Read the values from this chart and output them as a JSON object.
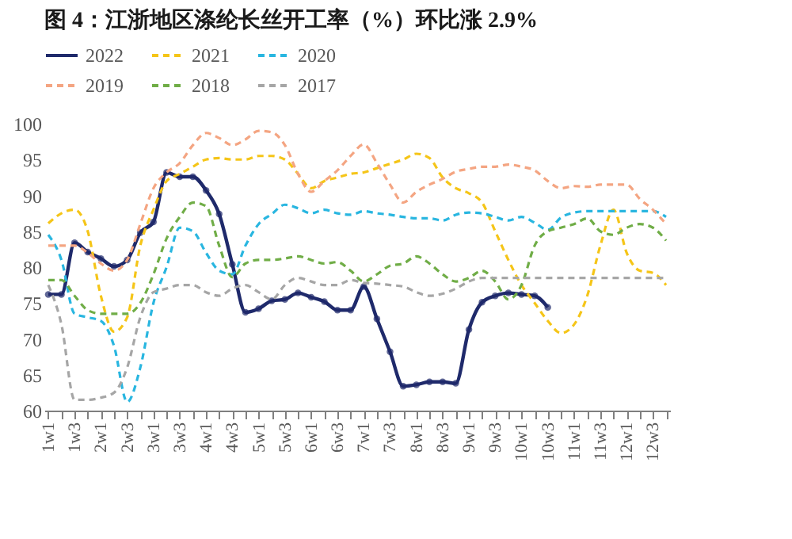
{
  "chart_data": {
    "type": "line",
    "title": "图 4：江浙地区涤纶长丝开工率（%）环比涨 2.9%",
    "categories": [
      "1w1",
      null,
      "1w3",
      null,
      "2w1",
      null,
      "2w3",
      null,
      "3w1",
      null,
      "3w3",
      null,
      "4w1",
      null,
      "4w3",
      null,
      "5w1",
      null,
      "5w3",
      null,
      "6w1",
      null,
      "6w3",
      null,
      "7w1",
      null,
      "7w3",
      null,
      "8w1",
      null,
      "8w3",
      null,
      "9w1",
      null,
      "9w3",
      null,
      "10w1",
      null,
      "10w3",
      null,
      "11w1",
      null,
      "11w3",
      null,
      "12w1",
      null,
      "12w3",
      null
    ],
    "ylim": [
      60,
      100
    ],
    "yticks": [
      60,
      65,
      70,
      75,
      80,
      85,
      90,
      95,
      100
    ],
    "grid": false,
    "legend": "top",
    "series": [
      {
        "name": "2022",
        "color": "#1f2a6b",
        "line_style": "solid",
        "marker": "circle",
        "values": [
          76.2,
          76.2,
          83.4,
          82.1,
          81.2,
          80.1,
          81,
          84.8,
          86.3,
          93.2,
          92.6,
          92.6,
          90.7,
          87.4,
          80.4,
          73.7,
          74.2,
          75.3,
          75.5,
          76.4,
          75.8,
          75.2,
          74,
          74,
          77.3,
          72.8,
          68.2,
          63.4,
          63.6,
          64,
          64,
          63.8,
          71.3,
          75.1,
          76,
          76.4,
          76.2,
          76,
          74.4,
          null,
          null,
          null,
          null,
          null,
          null,
          null,
          null,
          null
        ]
      },
      {
        "name": "2021",
        "color": "#f5c518",
        "line_style": "dashed",
        "marker": "none",
        "values": [
          86.1,
          87.5,
          88,
          85,
          76,
          71,
          73,
          83,
          88,
          92,
          93,
          94,
          95,
          95.2,
          95,
          95,
          95.5,
          95.5,
          95,
          93,
          91,
          92,
          92.5,
          93,
          93.2,
          93.8,
          94.4,
          95,
          95.8,
          95.2,
          92.5,
          91,
          90.3,
          89,
          85,
          81,
          77.5,
          75,
          72.5,
          70.8,
          72,
          76,
          83,
          88,
          82,
          79.5,
          79.2,
          77.5
        ]
      },
      {
        "name": "2020",
        "color": "#29b6e0",
        "line_style": "dashed",
        "marker": "none",
        "values": [
          84.5,
          81,
          73.5,
          73,
          72.5,
          69,
          61.2,
          66,
          75,
          80,
          85.5,
          85,
          82,
          79.5,
          79,
          83,
          86,
          87.4,
          88.7,
          88.2,
          87.5,
          88,
          87.5,
          87.3,
          87.8,
          87.5,
          87.3,
          87,
          86.8,
          86.8,
          86.5,
          87.3,
          87.6,
          87.5,
          87,
          86.5,
          87,
          86.2,
          85.2,
          86.9,
          87.6,
          87.8,
          87.8,
          87.8,
          87.8,
          87.8,
          87.8,
          87
        ]
      },
      {
        "name": "2019",
        "color": "#f4a582",
        "line_style": "dashed",
        "marker": "none",
        "values": [
          83,
          83,
          83,
          82,
          80.5,
          79.5,
          81,
          86,
          91,
          93.2,
          94.5,
          97,
          98.7,
          98,
          97,
          97.8,
          99,
          98.8,
          97,
          93,
          90.5,
          92,
          93.5,
          95.5,
          97.1,
          94.5,
          91.5,
          89,
          90.5,
          91.5,
          92.3,
          93.3,
          93.7,
          94,
          94,
          94.3,
          94,
          93.5,
          92,
          91,
          91.3,
          91.2,
          91.5,
          91.5,
          91.5,
          89.5,
          88,
          86
        ]
      },
      {
        "name": "2018",
        "color": "#70ad47",
        "line_style": "dashed",
        "marker": "none",
        "values": [
          78.2,
          78.2,
          76,
          74,
          73.5,
          73.5,
          73.5,
          75,
          79,
          84,
          87,
          89,
          88.5,
          83,
          78.6,
          80.5,
          81,
          81,
          81.2,
          81.5,
          81,
          80.5,
          80.7,
          79.5,
          78,
          79,
          80.2,
          80.5,
          81.5,
          80.5,
          79,
          78,
          78.5,
          79.5,
          78,
          75.5,
          77.5,
          83,
          85,
          85.5,
          86,
          86.8,
          85,
          84.5,
          85.5,
          86,
          85.5,
          83.7
        ]
      },
      {
        "name": "2017",
        "color": "#a6a6a6",
        "line_style": "dashed",
        "marker": "none",
        "values": [
          77.5,
          72,
          61.5,
          61.5,
          61.8,
          62.5,
          66,
          73,
          76.5,
          77,
          77.5,
          77.5,
          76.5,
          76,
          77,
          77.5,
          76.5,
          75.5,
          77.5,
          78.5,
          78,
          77.5,
          77.5,
          78.2,
          77.8,
          77.7,
          77.5,
          77.3,
          76.5,
          76,
          76.3,
          77,
          78,
          78.5,
          78.5,
          78.5,
          78.5,
          78.5,
          78.5,
          78.5,
          78.5,
          78.5,
          78.5,
          78.5,
          78.5,
          78.5,
          78.5,
          78.5
        ]
      }
    ]
  }
}
